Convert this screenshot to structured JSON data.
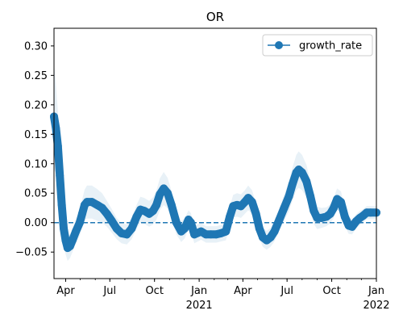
{
  "chart_data": {
    "type": "line",
    "title": "OR",
    "xlabel": "",
    "ylabel": "",
    "grid": false,
    "legend_position": "top-right",
    "x_range": [
      "2020-03-08",
      "2022-01-01"
    ],
    "ylim": [
      -0.095,
      0.33
    ],
    "y_ticks": [
      -0.05,
      0.0,
      0.05,
      0.1,
      0.15,
      0.2,
      0.25,
      0.3
    ],
    "y_tick_labels": [
      "−0.05",
      "0.00",
      "0.05",
      "0.10",
      "0.15",
      "0.20",
      "0.25",
      "0.30"
    ],
    "x_ticks": [
      {
        "date": "2020-04-01",
        "label": "Apr",
        "sublabel": ""
      },
      {
        "date": "2020-07-01",
        "label": "Jul",
        "sublabel": ""
      },
      {
        "date": "2020-10-01",
        "label": "Oct",
        "sublabel": ""
      },
      {
        "date": "2021-01-01",
        "label": "Jan",
        "sublabel": "2021"
      },
      {
        "date": "2021-04-01",
        "label": "Apr",
        "sublabel": ""
      },
      {
        "date": "2021-07-01",
        "label": "Jul",
        "sublabel": ""
      },
      {
        "date": "2021-10-01",
        "label": "Oct",
        "sublabel": ""
      },
      {
        "date": "2022-01-01",
        "label": "Jan",
        "sublabel": "2022"
      }
    ],
    "reference_line": {
      "y": 0.0,
      "style": "dashed"
    },
    "colors": {
      "series": "#1f77b4",
      "band": "#1f77b4"
    },
    "series": [
      {
        "name": "growth_rate",
        "marker": "circle",
        "points": [
          [
            "2020-03-08",
            0.18
          ],
          [
            "2020-03-12",
            0.16
          ],
          [
            "2020-03-16",
            0.13
          ],
          [
            "2020-03-20",
            0.08
          ],
          [
            "2020-03-24",
            0.03
          ],
          [
            "2020-03-28",
            -0.01
          ],
          [
            "2020-04-01",
            -0.03
          ],
          [
            "2020-04-05",
            -0.043
          ],
          [
            "2020-04-10",
            -0.04
          ],
          [
            "2020-04-15",
            -0.03
          ],
          [
            "2020-04-22",
            -0.015
          ],
          [
            "2020-04-30",
            0.0
          ],
          [
            "2020-05-05",
            0.015
          ],
          [
            "2020-05-10",
            0.03
          ],
          [
            "2020-05-15",
            0.035
          ],
          [
            "2020-05-25",
            0.035
          ],
          [
            "2020-06-05",
            0.03
          ],
          [
            "2020-06-15",
            0.025
          ],
          [
            "2020-06-25",
            0.015
          ],
          [
            "2020-07-05",
            0.003
          ],
          [
            "2020-07-15",
            -0.01
          ],
          [
            "2020-07-25",
            -0.018
          ],
          [
            "2020-08-05",
            -0.02
          ],
          [
            "2020-08-15",
            -0.01
          ],
          [
            "2020-08-25",
            0.01
          ],
          [
            "2020-09-02",
            0.022
          ],
          [
            "2020-09-10",
            0.02
          ],
          [
            "2020-09-20",
            0.015
          ],
          [
            "2020-09-28",
            0.02
          ],
          [
            "2020-10-05",
            0.03
          ],
          [
            "2020-10-12",
            0.048
          ],
          [
            "2020-10-20",
            0.058
          ],
          [
            "2020-10-28",
            0.05
          ],
          [
            "2020-11-05",
            0.03
          ],
          [
            "2020-11-15",
            0.0
          ],
          [
            "2020-11-25",
            -0.015
          ],
          [
            "2020-12-02",
            -0.01
          ],
          [
            "2020-12-10",
            0.005
          ],
          [
            "2020-12-15",
            0.0
          ],
          [
            "2020-12-22",
            -0.02
          ],
          [
            "2021-01-05",
            -0.015
          ],
          [
            "2021-01-15",
            -0.02
          ],
          [
            "2021-01-25",
            -0.02
          ],
          [
            "2021-02-05",
            -0.02
          ],
          [
            "2021-02-15",
            -0.018
          ],
          [
            "2021-02-25",
            -0.015
          ],
          [
            "2021-03-05",
            0.01
          ],
          [
            "2021-03-12",
            0.028
          ],
          [
            "2021-03-20",
            0.03
          ],
          [
            "2021-03-28",
            0.028
          ],
          [
            "2021-04-05",
            0.035
          ],
          [
            "2021-04-12",
            0.042
          ],
          [
            "2021-04-20",
            0.035
          ],
          [
            "2021-04-28",
            0.015
          ],
          [
            "2021-05-05",
            -0.01
          ],
          [
            "2021-05-12",
            -0.025
          ],
          [
            "2021-05-20",
            -0.03
          ],
          [
            "2021-05-28",
            -0.025
          ],
          [
            "2021-06-05",
            -0.015
          ],
          [
            "2021-06-15",
            0.005
          ],
          [
            "2021-06-25",
            0.025
          ],
          [
            "2021-07-05",
            0.045
          ],
          [
            "2021-07-12",
            0.065
          ],
          [
            "2021-07-20",
            0.085
          ],
          [
            "2021-07-25",
            0.09
          ],
          [
            "2021-08-01",
            0.085
          ],
          [
            "2021-08-10",
            0.07
          ],
          [
            "2021-08-18",
            0.045
          ],
          [
            "2021-08-25",
            0.02
          ],
          [
            "2021-09-01",
            0.008
          ],
          [
            "2021-09-10",
            0.008
          ],
          [
            "2021-09-20",
            0.01
          ],
          [
            "2021-09-28",
            0.015
          ],
          [
            "2021-10-05",
            0.025
          ],
          [
            "2021-10-12",
            0.04
          ],
          [
            "2021-10-20",
            0.035
          ],
          [
            "2021-10-28",
            0.01
          ],
          [
            "2021-11-05",
            -0.005
          ],
          [
            "2021-11-12",
            -0.007
          ],
          [
            "2021-11-20",
            0.002
          ],
          [
            "2021-11-28",
            0.008
          ],
          [
            "2021-12-05",
            0.012
          ],
          [
            "2021-12-12",
            0.017
          ],
          [
            "2021-12-20",
            0.017
          ],
          [
            "2022-01-01",
            0.017
          ]
        ],
        "band_half_width": [
          0.09,
          0.075,
          0.06,
          0.045,
          0.035,
          0.028,
          0.024,
          0.022,
          0.02,
          0.02,
          0.02,
          0.022,
          0.024,
          0.026,
          0.028,
          0.028,
          0.027,
          0.025,
          0.022,
          0.02,
          0.018,
          0.017,
          0.017,
          0.018,
          0.02,
          0.022,
          0.022,
          0.022,
          0.023,
          0.025,
          0.027,
          0.028,
          0.026,
          0.024,
          0.02,
          0.018,
          0.017,
          0.016,
          0.016,
          0.015,
          0.014,
          0.014,
          0.014,
          0.014,
          0.014,
          0.015,
          0.017,
          0.019,
          0.02,
          0.02,
          0.02,
          0.021,
          0.02,
          0.018,
          0.017,
          0.016,
          0.016,
          0.016,
          0.017,
          0.019,
          0.022,
          0.025,
          0.028,
          0.03,
          0.031,
          0.03,
          0.028,
          0.025,
          0.022,
          0.019,
          0.017,
          0.016,
          0.016,
          0.017,
          0.018,
          0.018,
          0.016,
          0.014,
          0.013,
          0.012,
          0.012,
          0.011,
          0.011,
          0.011,
          0.011
        ]
      }
    ]
  }
}
